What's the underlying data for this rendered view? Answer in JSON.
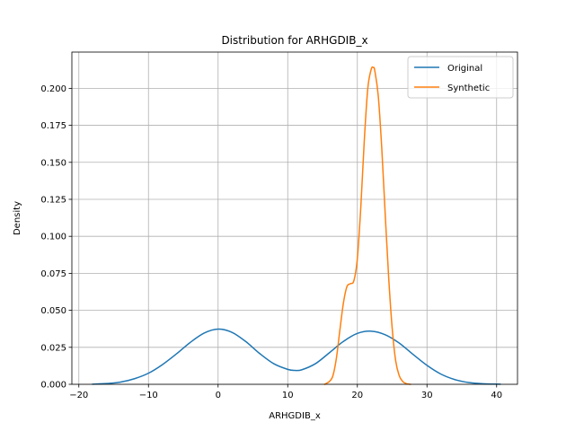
{
  "chart_data": {
    "type": "line",
    "title": "Distribution for ARHGDIB_x",
    "xlabel": "ARHGDIB_x",
    "ylabel": "Density",
    "xlim": [
      -21,
      43
    ],
    "ylim": [
      0,
      0.2245
    ],
    "xticks": [
      -20,
      -10,
      0,
      10,
      20,
      30,
      40
    ],
    "xtick_labels": [
      "−20",
      "−10",
      "0",
      "10",
      "20",
      "30",
      "40"
    ],
    "yticks": [
      0,
      0.025,
      0.05,
      0.075,
      0.1,
      0.125,
      0.15,
      0.175,
      0.2
    ],
    "ytick_labels": [
      "0.000",
      "0.025",
      "0.050",
      "0.075",
      "0.100",
      "0.125",
      "0.150",
      "0.175",
      "0.200"
    ],
    "grid": true,
    "legend_position": "top-right",
    "series": [
      {
        "name": "Original",
        "color": "#1f77b4",
        "x": [
          -18,
          -16,
          -14,
          -12,
          -10,
          -8,
          -6,
          -4,
          -2,
          0,
          2,
          4,
          6,
          8,
          10,
          11,
          12,
          14,
          16,
          18,
          20,
          22,
          24,
          26,
          28,
          30,
          32,
          34,
          36,
          38,
          40.5
        ],
        "y": [
          0.0001,
          0.0005,
          0.0015,
          0.0038,
          0.0075,
          0.0133,
          0.0205,
          0.0283,
          0.0346,
          0.0373,
          0.0351,
          0.0288,
          0.0207,
          0.0139,
          0.0101,
          0.0094,
          0.0098,
          0.014,
          0.0214,
          0.029,
          0.0344,
          0.0359,
          0.0335,
          0.0279,
          0.0202,
          0.0128,
          0.0069,
          0.0032,
          0.0012,
          0.0004,
          0.0001
        ]
      },
      {
        "name": "Synthetic",
        "color": "#ff7f0e",
        "x": [
          15.3,
          16,
          16.5,
          17,
          17.5,
          18,
          18.5,
          19,
          19.5,
          20,
          20.5,
          21,
          21.5,
          22,
          22.3,
          22.5,
          23,
          23.5,
          24,
          24.5,
          25,
          25.5,
          26,
          26.5,
          27,
          27.6
        ],
        "y": [
          0.0,
          0.002,
          0.006,
          0.018,
          0.037,
          0.055,
          0.066,
          0.068,
          0.07,
          0.085,
          0.12,
          0.165,
          0.2,
          0.213,
          0.214,
          0.212,
          0.195,
          0.16,
          0.115,
          0.072,
          0.038,
          0.016,
          0.006,
          0.002,
          0.0005,
          0.0
        ]
      }
    ]
  }
}
